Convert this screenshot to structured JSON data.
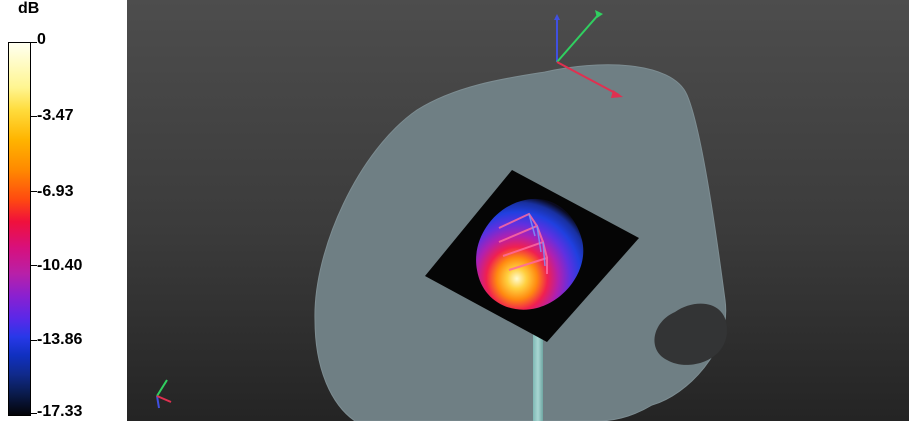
{
  "legend": {
    "unit": "dB",
    "ticks": [
      "0",
      "-3.47",
      "-6.93",
      "-10.40",
      "-13.86",
      "-17.33"
    ]
  },
  "viewport": {
    "background": "#3b3b3b",
    "phantom_color": "#6f7f84",
    "axis_colors": {
      "x": "#e03050",
      "y": "#30d060",
      "z": "#4050e0"
    },
    "icons": [
      "orientation-gizmo-icon",
      "corner-axes-icon"
    ]
  }
}
